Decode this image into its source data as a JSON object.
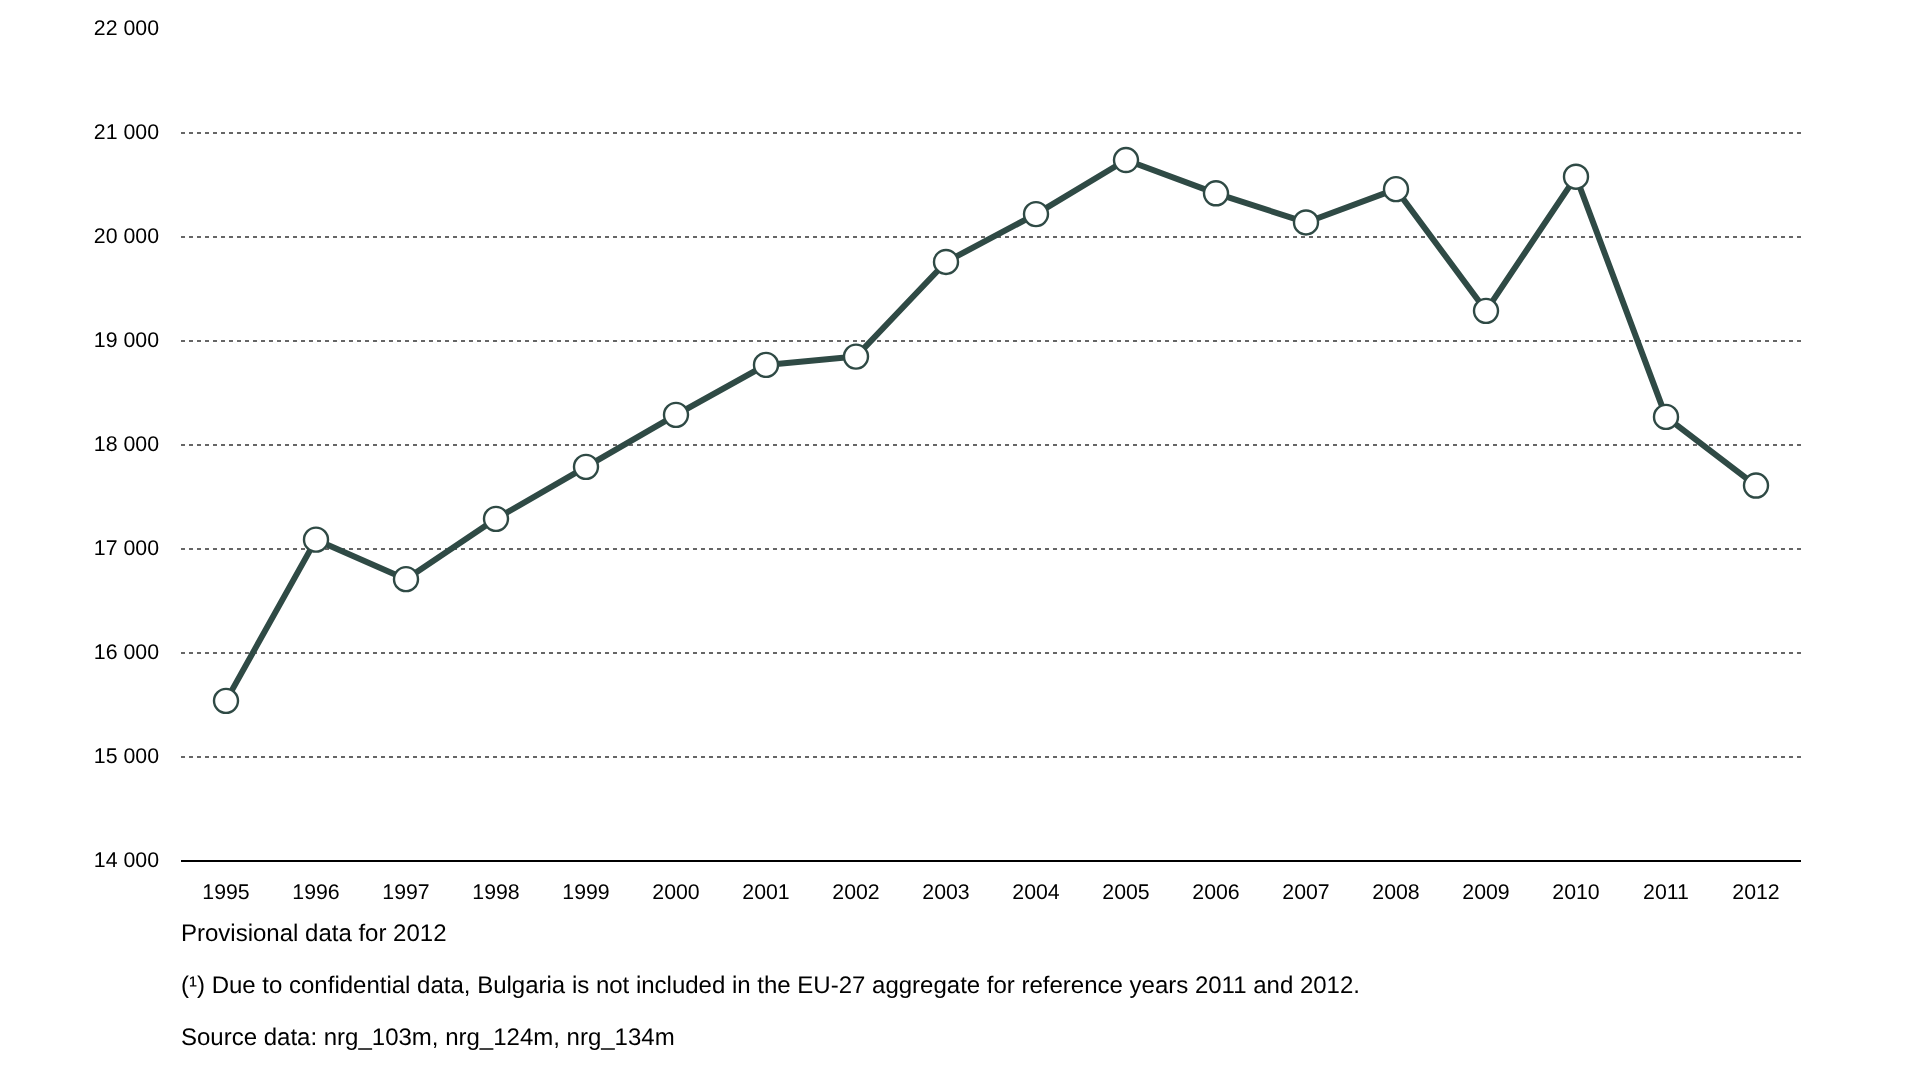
{
  "chart_data": {
    "type": "line",
    "categories": [
      "1995",
      "1996",
      "1997",
      "1998",
      "1999",
      "2000",
      "2001",
      "2002",
      "2003",
      "2004",
      "2005",
      "2006",
      "2007",
      "2008",
      "2009",
      "2010",
      "2011",
      "2012"
    ],
    "series": [
      {
        "color": "#2f4a45",
        "values": [
          15540,
          17090,
          16710,
          17290,
          17790,
          18290,
          18770,
          18850,
          19760,
          20220,
          20740,
          20420,
          20140,
          20460,
          19290,
          20580,
          18270,
          17610
        ]
      }
    ],
    "ylim": [
      14000,
      22000
    ],
    "yticks": [
      {
        "value": 14000,
        "label": "14 000"
      },
      {
        "value": 15000,
        "label": "15 000"
      },
      {
        "value": 16000,
        "label": "16 000"
      },
      {
        "value": 17000,
        "label": "17 000"
      },
      {
        "value": 18000,
        "label": "18 000"
      },
      {
        "value": 19000,
        "label": "19 000"
      },
      {
        "value": 20000,
        "label": "20 000"
      },
      {
        "value": 21000,
        "label": "21 000"
      },
      {
        "value": 22000,
        "label": "22 000"
      }
    ],
    "grid": "y",
    "marker": "circle",
    "line_style": "solid",
    "annotations": [
      "Provisional data for 2012",
      "(¹) Due to confidential data, Bulgaria is not included in the EU-27 aggregate for reference years 2011 and 2012.",
      "Source data: nrg_103m, nrg_124m, nrg_134m"
    ]
  }
}
